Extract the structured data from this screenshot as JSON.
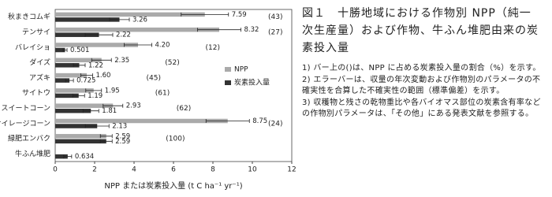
{
  "chart_data": {
    "type": "bar",
    "orientation": "horizontal",
    "categories": [
      "秋まきコムギ",
      "テンサイ",
      "バレイショ",
      "ダイズ",
      "アズキ",
      "サイトウ",
      "スイートコーン",
      "サイレージコーン",
      "緑肥エンバク",
      "牛ふん堆肥"
    ],
    "series": [
      {
        "name": "NPP",
        "color": "#aaaaaa",
        "values": [
          7.59,
          8.32,
          4.2,
          2.35,
          1.6,
          1.95,
          2.93,
          8.75,
          2.59,
          null
        ],
        "value_labels": [
          "7.59",
          "8.32",
          "4.20",
          "2.35",
          "1.60",
          "1.95",
          "2.93",
          "8.75",
          "2.59",
          null
        ],
        "errors": [
          1.2,
          1.1,
          0.7,
          0.5,
          0.3,
          0.4,
          0.5,
          1.1,
          0.3,
          null
        ]
      },
      {
        "name": "炭素投入量",
        "color": "#333333",
        "values": [
          3.26,
          2.22,
          0.501,
          1.22,
          0.725,
          1.19,
          1.81,
          2.13,
          2.59,
          0.634
        ],
        "value_labels": [
          "3.26",
          "2.22",
          "0.501",
          "1.22",
          "0.725",
          "1.19",
          "1.81",
          "2.13",
          "2.59",
          "0.634"
        ],
        "errors": [
          0.5,
          0.7,
          0.1,
          0.3,
          0.2,
          0.3,
          0.4,
          0.6,
          0.3,
          0.2
        ]
      }
    ],
    "share_values": [
      43,
      27,
      12,
      52,
      45,
      61,
      62,
      24,
      100,
      null
    ],
    "share_labels": [
      "(43)",
      "(27)",
      "(12)",
      "(52)",
      "(45)",
      "(61)",
      "(62)",
      "(24)",
      "(100)",
      null
    ],
    "xlabel": "NPP または炭素投入量 (t C ha⁻¹ yr⁻¹)",
    "xlim": [
      0,
      12
    ],
    "xticks": [
      0,
      2,
      4,
      6,
      8,
      10,
      12
    ],
    "legend": "right"
  },
  "caption": {
    "title": "図１　十勝地域における作物別 NPP（純一次生産量）および作物、牛ふん堆肥由来の炭素投入量",
    "notes": [
      "1) バー上の()は、NPP に占める炭素投入量の割合（%）を示す。",
      "2) エラーバーは、収量の年次変動および作物別のパラメータの不確実性を合算した不確実性の範囲（標準偏差）を示す。",
      "3) 収穫物と残さの乾物重比や各バイオマス部位の炭素含有率などの作物別パラメータは、「その他」にある発表文献を参照する。"
    ]
  }
}
